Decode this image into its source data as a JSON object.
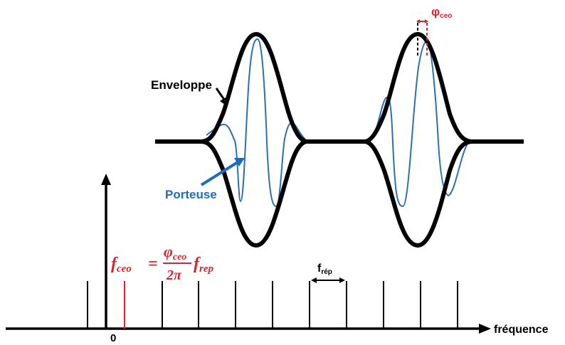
{
  "labels": {
    "envelope": "Enveloppe",
    "carrier": "Porteuse",
    "frequency_axis": "fréquence",
    "origin": "0",
    "phi_ceo_symbol": "φ",
    "phi_ceo_sub": "ceo",
    "f_rep_symbol": "f",
    "f_rep_sub": "rép"
  },
  "formula": {
    "lhs_symbol": "f",
    "lhs_sub": "ceo",
    "equals": "=",
    "num_symbol": "φ",
    "num_sub": "ceo",
    "denominator": "2π",
    "rhs_symbol": "f",
    "rhs_sub": "rep"
  },
  "colors": {
    "black": "#000000",
    "carrier_blue": "#2e6fad",
    "carrier_label_blue": "#1f6cb8",
    "accent_red": "#e0202a"
  }
}
